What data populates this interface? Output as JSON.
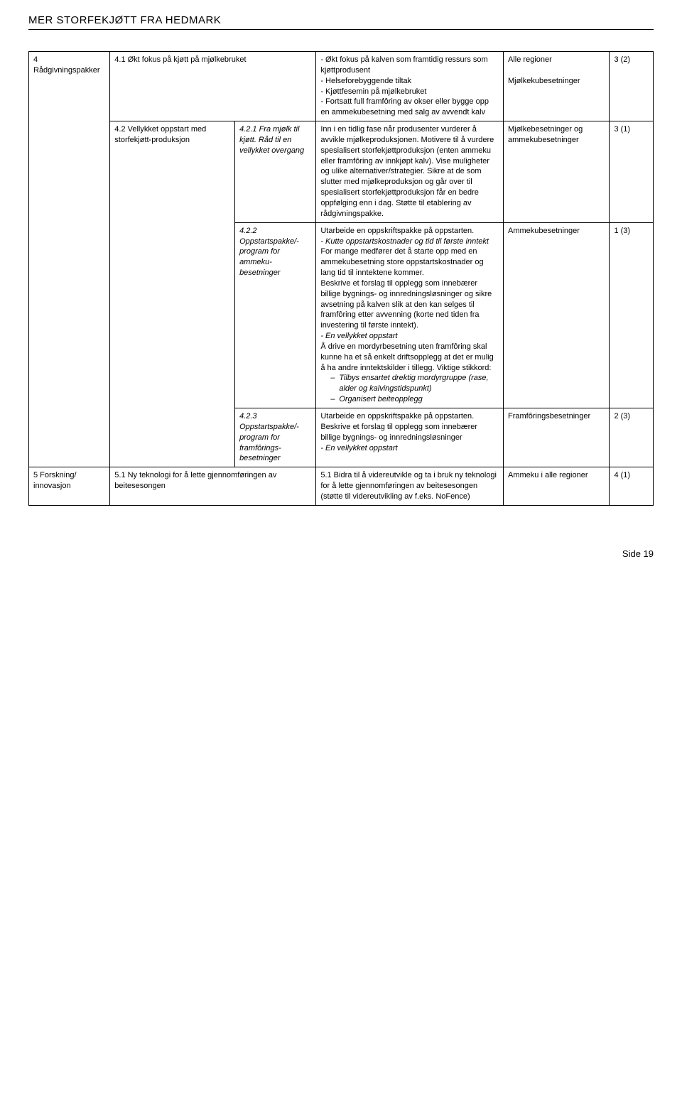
{
  "header": {
    "title": "MER STORFEKJØTT FRA HEDMARK"
  },
  "rows": [
    {
      "a": "4\nRådgivningspakker",
      "b": "4.1 Økt fokus på kjøtt på mjølkebruket",
      "c": "",
      "d": "- Økt fokus på kalven som framtidig ressurs som kjøttprodusent\n- Helseforebyggende tiltak\n- Kjøttfesemin på mjølkebruket\n- Fortsatt full framfôring av okser eller bygge opp en ammekubesetning med salg av avvendt kalv",
      "e": "Alle regioner\n\nMjølkekubesetninger",
      "f": "3 (2)"
    },
    {
      "b": "4.2 Vellykket oppstart med storfekjøtt-produksjon",
      "c": "4.2.1 Fra mjølk til kjøtt. Råd til en vellykket overgang",
      "d": "Inn i en tidlig fase når produsenter vurderer å avvikle mjølkeproduksjonen. Motivere til å vurdere spesialisert storfekjøttproduksjon (enten ammeku eller framfôring av innkjøpt kalv). Vise muligheter og ulike alternativer/strategier. Sikre at de som slutter med mjølkeproduksjon og går over til spesialisert storfekjøttproduksjon får en bedre oppfølging enn i dag. Støtte til etablering av rådgivningspakke.",
      "e": "Mjølkebesetninger og ammekubesetninger",
      "f": "3 (1)"
    },
    {
      "c": "4.2.2 Oppstartspakke/-program for ammeku-besetninger",
      "d_pre": "Utarbeide en oppskriftspakke på oppstarten.",
      "d_ital1": "- Kutte oppstartskostnader og tid til første inntekt",
      "d_mid": "For mange medfører det å starte opp med en ammekubesetning store oppstartskostnader og lang tid til inntektene kommer.\nBeskrive et forslag til opplegg som innebærer billige bygnings- og innredningsløsninger og sikre avsetning på kalven slik at den kan selges til framfôring etter avvenning (korte ned tiden fra investering til første inntekt).",
      "d_ital2": "- En vellykket oppstart",
      "d_post": "Å drive en mordyrbesetning uten framfôring skal kunne ha et så enkelt driftsopplegg at det er mulig å ha andre inntektskilder i tillegg. Viktige stikkord:",
      "d_li1": "Tilbys ensartet drektig mordyrgruppe (rase, alder og kalvingstidspunkt)",
      "d_li2": "Organisert beiteopplegg",
      "e": "Ammekubesetninger",
      "f": "1 (3)"
    },
    {
      "c": "4.2.3 Oppstartspakke/-program for framfôrings-besetninger",
      "d_pre": "Utarbeide en oppskriftspakke på oppstarten.\nBeskrive et forslag til opplegg som innebærer billige bygnings- og innredningsløsninger",
      "d_ital1": "- En vellykket oppstart",
      "e": "Framfôringsbesetninger",
      "f": "2 (3)"
    },
    {
      "a": "5 Forskning/ innovasjon",
      "b": "5.1 Ny teknologi for å lette gjennomføringen av beitesesongen",
      "d": "5.1 Bidra til å videreutvikle og ta i bruk ny teknologi for å lette gjennomføringen av beitesesongen (støtte til videreutvikling av f.eks. NoFence)",
      "e": "Ammeku i alle regioner",
      "f": "4 (1)"
    }
  ],
  "footer": {
    "text": "Side 19"
  }
}
